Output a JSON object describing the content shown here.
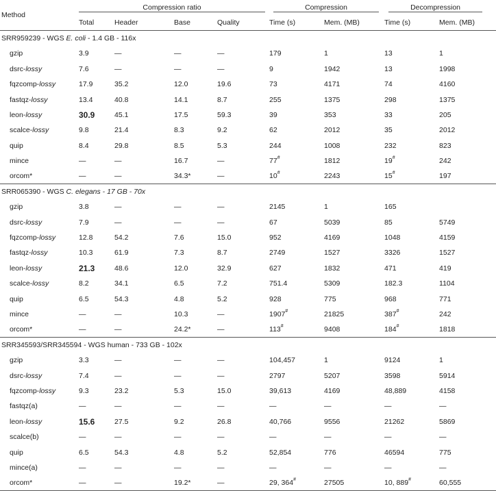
{
  "header": {
    "method": "Method",
    "groups": [
      "Compression ratio",
      "Compression",
      "Decompression"
    ],
    "subcols": [
      "Total",
      "Header",
      "Base",
      "Quality",
      "Time (s)",
      "Mem. (MB)",
      "Time (s)",
      "Mem. (MB)"
    ]
  },
  "sections": [
    {
      "title": [
        "SRR959239 - WGS ",
        "E. coli",
        " - 1.4 GB - 116x"
      ],
      "title_italic": [
        false,
        true,
        false
      ],
      "rows": [
        {
          "m": [
            "gzip",
            ""
          ],
          "c": [
            {
              "t": "3.9"
            },
            {
              "t": "—"
            },
            {
              "t": "—"
            },
            {
              "t": "—"
            },
            {
              "t": "179"
            },
            {
              "t": "1"
            },
            {
              "t": "13"
            },
            {
              "t": "1"
            }
          ]
        },
        {
          "m": [
            "dsrc-",
            "lossy"
          ],
          "c": [
            {
              "t": "7.6"
            },
            {
              "t": "—"
            },
            {
              "t": "—"
            },
            {
              "t": "—"
            },
            {
              "t": "9"
            },
            {
              "t": "1942"
            },
            {
              "t": "13"
            },
            {
              "t": "1998"
            }
          ]
        },
        {
          "m": [
            "fqzcomp-",
            "lossy"
          ],
          "c": [
            {
              "t": "17.9"
            },
            {
              "t": "35.2"
            },
            {
              "t": "12.0"
            },
            {
              "t": "19.6"
            },
            {
              "t": "73"
            },
            {
              "t": "4171"
            },
            {
              "t": "74"
            },
            {
              "t": "4160"
            }
          ]
        },
        {
          "m": [
            "fastqz-",
            "lossy"
          ],
          "c": [
            {
              "t": "13.4"
            },
            {
              "t": "40.8"
            },
            {
              "t": "14.1"
            },
            {
              "t": "8.7"
            },
            {
              "t": "255"
            },
            {
              "t": "1375"
            },
            {
              "t": "298"
            },
            {
              "t": "1375"
            }
          ]
        },
        {
          "m": [
            "leon-",
            "lossy"
          ],
          "c": [
            {
              "t": "30.9",
              "b": true
            },
            {
              "t": "45.1"
            },
            {
              "t": "17.5"
            },
            {
              "t": "59.3"
            },
            {
              "t": "39"
            },
            {
              "t": "353"
            },
            {
              "t": "33"
            },
            {
              "t": "205"
            }
          ]
        },
        {
          "m": [
            "scalce-",
            "lossy"
          ],
          "c": [
            {
              "t": "9.8"
            },
            {
              "t": "21.4"
            },
            {
              "t": "8.3"
            },
            {
              "t": "9.2"
            },
            {
              "t": "62"
            },
            {
              "t": "2012"
            },
            {
              "t": "35"
            },
            {
              "t": "2012"
            }
          ]
        },
        {
          "m": [
            "quip",
            ""
          ],
          "c": [
            {
              "t": "8.4"
            },
            {
              "t": "29.8"
            },
            {
              "t": "8.5"
            },
            {
              "t": "5.3"
            },
            {
              "t": "244"
            },
            {
              "t": "1008"
            },
            {
              "t": "232"
            },
            {
              "t": "823"
            }
          ]
        },
        {
          "m": [
            "mince",
            ""
          ],
          "c": [
            {
              "t": "—"
            },
            {
              "t": "—"
            },
            {
              "t": "16.7"
            },
            {
              "t": "—"
            },
            {
              "t": "77",
              "s": "#"
            },
            {
              "t": "1812"
            },
            {
              "t": "19",
              "s": "#"
            },
            {
              "t": "242"
            }
          ]
        },
        {
          "m": [
            "orcom*",
            ""
          ],
          "c": [
            {
              "t": "—"
            },
            {
              "t": "—"
            },
            {
              "t": "34.3*"
            },
            {
              "t": "—"
            },
            {
              "t": "10",
              "s": "#"
            },
            {
              "t": "2243"
            },
            {
              "t": "15",
              "s": "#"
            },
            {
              "t": "197"
            }
          ]
        }
      ]
    },
    {
      "title": [
        "SRR065390 - WGS ",
        "C. elegans - 17 GB - 70x",
        ""
      ],
      "title_italic": [
        false,
        true,
        false
      ],
      "rows": [
        {
          "m": [
            "gzip",
            ""
          ],
          "c": [
            {
              "t": "3.8"
            },
            {
              "t": "—"
            },
            {
              "t": "—"
            },
            {
              "t": "—"
            },
            {
              "t": "2145"
            },
            {
              "t": "1"
            },
            {
              "t": "165"
            },
            {
              "t": ""
            }
          ]
        },
        {
          "m": [
            "dsrc-",
            "lossy"
          ],
          "c": [
            {
              "t": "7.9"
            },
            {
              "t": "—"
            },
            {
              "t": "—"
            },
            {
              "t": "—"
            },
            {
              "t": "67"
            },
            {
              "t": "5039"
            },
            {
              "t": "85"
            },
            {
              "t": "5749"
            }
          ]
        },
        {
          "m": [
            "fqzcomp-",
            "lossy"
          ],
          "c": [
            {
              "t": "12.8"
            },
            {
              "t": "54.2"
            },
            {
              "t": "7.6"
            },
            {
              "t": "15.0"
            },
            {
              "t": "952"
            },
            {
              "t": "4169"
            },
            {
              "t": "1048"
            },
            {
              "t": "4159"
            }
          ]
        },
        {
          "m": [
            "fastqz-",
            "lossy"
          ],
          "c": [
            {
              "t": "10.3"
            },
            {
              "t": "61.9"
            },
            {
              "t": "7.3"
            },
            {
              "t": "8.7"
            },
            {
              "t": "2749"
            },
            {
              "t": "1527"
            },
            {
              "t": "3326"
            },
            {
              "t": "1527"
            }
          ]
        },
        {
          "m": [
            "leon-",
            "lossy"
          ],
          "c": [
            {
              "t": "21.3",
              "b": true
            },
            {
              "t": "48.6"
            },
            {
              "t": "12.0"
            },
            {
              "t": "32.9"
            },
            {
              "t": "627"
            },
            {
              "t": "1832"
            },
            {
              "t": "471"
            },
            {
              "t": "419"
            }
          ]
        },
        {
          "m": [
            "scalce-",
            "lossy"
          ],
          "c": [
            {
              "t": "8.2"
            },
            {
              "t": "34.1"
            },
            {
              "t": "6.5"
            },
            {
              "t": "7.2"
            },
            {
              "t": "751.4"
            },
            {
              "t": "5309"
            },
            {
              "t": "182.3"
            },
            {
              "t": "1104"
            }
          ]
        },
        {
          "m": [
            "quip",
            ""
          ],
          "c": [
            {
              "t": "6.5"
            },
            {
              "t": "54.3"
            },
            {
              "t": "4.8"
            },
            {
              "t": "5.2"
            },
            {
              "t": "928"
            },
            {
              "t": "775"
            },
            {
              "t": "968"
            },
            {
              "t": "771"
            }
          ]
        },
        {
          "m": [
            "mince",
            ""
          ],
          "c": [
            {
              "t": "—"
            },
            {
              "t": "—"
            },
            {
              "t": "10.3"
            },
            {
              "t": "—"
            },
            {
              "t": "1907",
              "s": "#"
            },
            {
              "t": "21825"
            },
            {
              "t": "387",
              "s": "#"
            },
            {
              "t": "242"
            }
          ]
        },
        {
          "m": [
            "orcom*",
            ""
          ],
          "c": [
            {
              "t": "—"
            },
            {
              "t": "—"
            },
            {
              "t": "24.2*"
            },
            {
              "t": "—"
            },
            {
              "t": "113",
              "s": "#"
            },
            {
              "t": "9408"
            },
            {
              "t": "184",
              "s": "#"
            },
            {
              "t": "1818"
            }
          ]
        }
      ]
    },
    {
      "title": [
        "SRR345593/SRR345594 - WGS human - 733 GB - 102x",
        "",
        ""
      ],
      "title_italic": [
        false,
        false,
        false
      ],
      "rows": [
        {
          "m": [
            "gzip",
            ""
          ],
          "c": [
            {
              "t": "3.3"
            },
            {
              "t": "—"
            },
            {
              "t": "—"
            },
            {
              "t": "—"
            },
            {
              "t": "104,457"
            },
            {
              "t": "1"
            },
            {
              "t": "9124"
            },
            {
              "t": "1"
            }
          ]
        },
        {
          "m": [
            "dsrc-",
            "lossy"
          ],
          "c": [
            {
              "t": "7.4"
            },
            {
              "t": "—"
            },
            {
              "t": "—"
            },
            {
              "t": "—"
            },
            {
              "t": "2797"
            },
            {
              "t": "5207"
            },
            {
              "t": "3598"
            },
            {
              "t": "5914"
            }
          ]
        },
        {
          "m": [
            "fqzcomp-",
            "lossy"
          ],
          "c": [
            {
              "t": "9.3"
            },
            {
              "t": "23.2"
            },
            {
              "t": "5.3"
            },
            {
              "t": "15.0"
            },
            {
              "t": "39,613"
            },
            {
              "t": "4169"
            },
            {
              "t": "48,889"
            },
            {
              "t": "4158"
            }
          ]
        },
        {
          "m": [
            "fastqz(a)",
            ""
          ],
          "c": [
            {
              "t": "—"
            },
            {
              "t": "—"
            },
            {
              "t": "—"
            },
            {
              "t": "—"
            },
            {
              "t": "—"
            },
            {
              "t": "—"
            },
            {
              "t": "—"
            },
            {
              "t": "—"
            }
          ]
        },
        {
          "m": [
            "leon-",
            "lossy"
          ],
          "c": [
            {
              "t": "15.6",
              "b": true
            },
            {
              "t": "27.5"
            },
            {
              "t": "9.2"
            },
            {
              "t": "26.8"
            },
            {
              "t": "40,766"
            },
            {
              "t": "9556"
            },
            {
              "t": "21262"
            },
            {
              "t": "5869"
            }
          ]
        },
        {
          "m": [
            "scalce(b)",
            ""
          ],
          "c": [
            {
              "t": "—"
            },
            {
              "t": "—"
            },
            {
              "t": "—"
            },
            {
              "t": "—"
            },
            {
              "t": "—"
            },
            {
              "t": "—"
            },
            {
              "t": "—"
            },
            {
              "t": "—"
            }
          ]
        },
        {
          "m": [
            "quip",
            ""
          ],
          "c": [
            {
              "t": "6.5"
            },
            {
              "t": "54.3"
            },
            {
              "t": "4.8"
            },
            {
              "t": "5.2"
            },
            {
              "t": "52,854"
            },
            {
              "t": "776"
            },
            {
              "t": "46594"
            },
            {
              "t": "775"
            }
          ]
        },
        {
          "m": [
            "mince(a)",
            ""
          ],
          "c": [
            {
              "t": "—"
            },
            {
              "t": "—"
            },
            {
              "t": "—"
            },
            {
              "t": "—"
            },
            {
              "t": "—"
            },
            {
              "t": "—"
            },
            {
              "t": "—"
            },
            {
              "t": "—"
            }
          ]
        },
        {
          "m": [
            "orcom*",
            ""
          ],
          "c": [
            {
              "t": "—"
            },
            {
              "t": "—"
            },
            {
              "t": "19.2*"
            },
            {
              "t": "—"
            },
            {
              "t": "29, 364",
              "s": "#"
            },
            {
              "t": "27505"
            },
            {
              "t": "10, 889",
              "s": "#"
            },
            {
              "t": "60,555"
            }
          ]
        }
      ]
    }
  ]
}
